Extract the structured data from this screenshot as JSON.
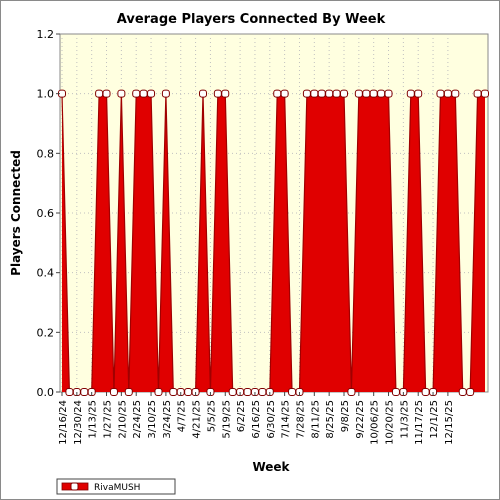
{
  "chart_data": {
    "type": "area",
    "title": "Average Players Connected By Week",
    "xlabel": "Week",
    "ylabel": "Players Connected",
    "ylim": [
      0,
      1.2
    ],
    "yticks": [
      "0.0",
      "0.2",
      "0.4",
      "0.6",
      "0.8",
      "1.0",
      "1.2"
    ],
    "x_tick_labels": [
      "12/16/24",
      "12/30/24",
      "1/13/25",
      "1/27/25",
      "2/10/25",
      "2/24/25",
      "3/10/25",
      "3/24/25",
      "4/7/25",
      "4/21/25",
      "5/5/25",
      "5/19/25",
      "6/2/25",
      "6/16/25",
      "6/30/25",
      "7/14/25",
      "7/28/25",
      "8/11/25",
      "8/25/25",
      "9/8/25",
      "9/22/25",
      "10/06/25",
      "10/20/25",
      "11/3/25",
      "11/17/25",
      "12/1/25",
      "12/15/25"
    ],
    "grid": true,
    "legend_position": "bottom-left",
    "series": [
      {
        "name": "RivaMUSH",
        "color": "#e00000",
        "values": [
          1,
          0,
          0,
          0,
          0,
          1,
          1,
          0,
          1,
          0,
          1,
          1,
          1,
          0,
          1,
          0,
          0,
          0,
          0,
          1,
          0,
          1,
          1,
          0,
          0,
          0,
          0,
          0,
          0,
          1,
          1,
          0,
          0,
          1,
          1,
          1,
          1,
          1,
          1,
          0,
          1,
          1,
          1,
          1,
          1,
          0,
          0,
          1,
          1,
          0,
          0,
          1,
          1,
          1,
          0,
          0,
          1,
          1
        ]
      }
    ]
  }
}
